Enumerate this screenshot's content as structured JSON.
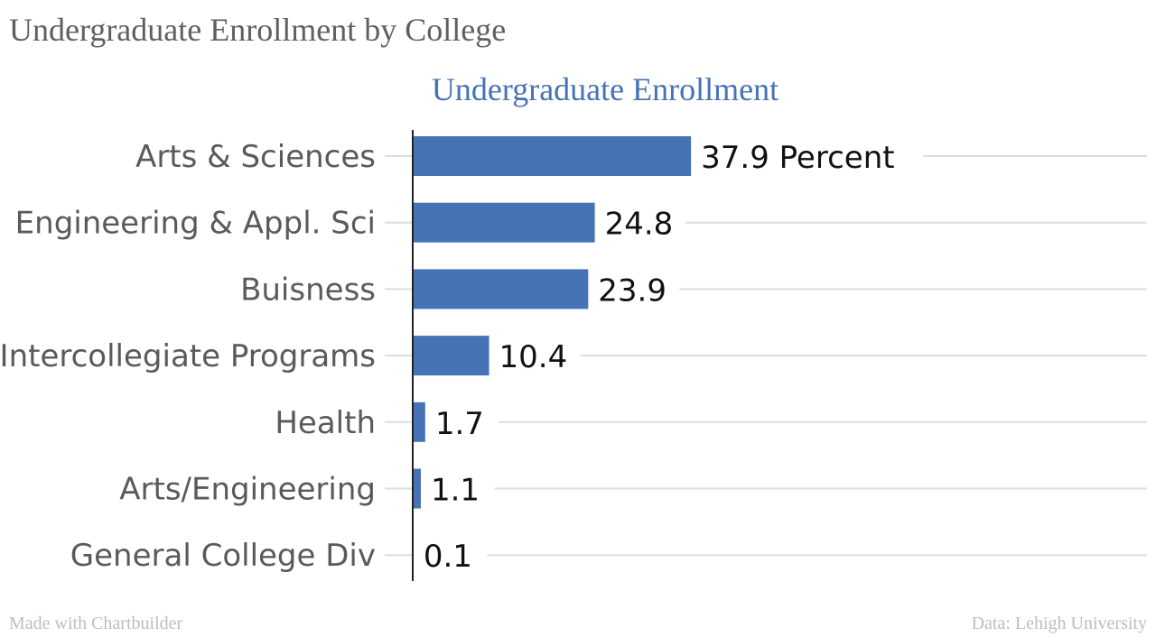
{
  "page_title": "Undergraduate Enrollment by College",
  "footer": {
    "made_with": "Made with Chartbuilder",
    "source": "Data: Lehigh University"
  },
  "chart_data": {
    "type": "bar",
    "orientation": "horizontal",
    "title": "Undergraduate Enrollment",
    "categories": [
      "Arts & Sciences",
      "Engineering & Appl. Sci",
      "Buisness",
      "Intercollegiate Programs",
      "Health",
      "Arts/Engineering",
      "General College Div"
    ],
    "values": [
      37.9,
      24.8,
      23.9,
      10.4,
      1.7,
      1.1,
      0.1
    ],
    "value_labels": [
      "37.9 Percent",
      "24.8",
      "23.9",
      "10.4",
      "1.7",
      "1.1",
      "0.1"
    ],
    "xlim": [
      0,
      100
    ],
    "grid": true,
    "colors": {
      "bar": "#4573b5",
      "title": "#4573b5",
      "category_label": "#5a5a5a",
      "value_label": "#111111",
      "grid": "#dddddd",
      "axis": "#222222"
    }
  }
}
